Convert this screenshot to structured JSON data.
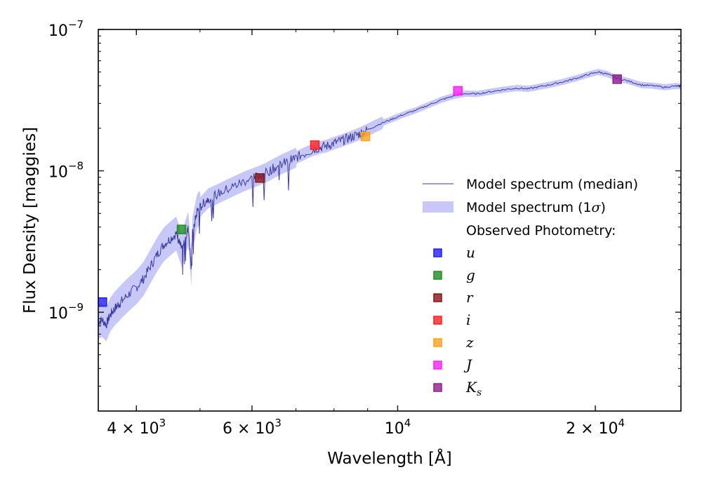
{
  "chart_data": {
    "type": "line",
    "title": "",
    "xlabel": "Wavelength [Å]",
    "ylabel": "Flux Density [maggies]",
    "xscale": "log",
    "yscale": "log",
    "xlim": [
      3500,
      27000
    ],
    "ylim": [
      2e-10,
      1e-07
    ],
    "grid": false,
    "legend_position": "right",
    "x_ticks": [
      {
        "value": 4000,
        "mantissa": "4",
        "exp": "3"
      },
      {
        "value": 6000,
        "mantissa": "6",
        "exp": "3"
      },
      {
        "value": 10000,
        "mantissa": "",
        "exp": "4"
      },
      {
        "value": 20000,
        "mantissa": "2",
        "exp": "4"
      }
    ],
    "y_ticks": [
      {
        "value": 1e-09,
        "exp": "−9"
      },
      {
        "value": 1e-08,
        "exp": "−8"
      },
      {
        "value": 1e-07,
        "exp": "−7"
      }
    ],
    "model_spectrum": {
      "name": "Model spectrum (median)",
      "band_name": "Model spectrum (1σ)",
      "color": "#3a3aa0",
      "band_color": "#c8c8f8",
      "points": [
        [
          3500,
          8.6e-10
        ],
        [
          3550,
          8.8e-10
        ],
        [
          3600,
          8.2e-10
        ],
        [
          3650,
          9.6e-10
        ],
        [
          3700,
          1.05e-09
        ],
        [
          3750,
          1.12e-09
        ],
        [
          3800,
          1.2e-09
        ],
        [
          3900,
          1.35e-09
        ],
        [
          4000,
          1.5e-09
        ],
        [
          4100,
          1.72e-09
        ],
        [
          4200,
          2.1e-09
        ],
        [
          4300,
          2.55e-09
        ],
        [
          4400,
          3e-09
        ],
        [
          4500,
          3.3e-09
        ],
        [
          4600,
          3.6e-09
        ],
        [
          4650,
          3.1e-09
        ],
        [
          4700,
          2.7e-09
        ],
        [
          4750,
          3.4e-09
        ],
        [
          4800,
          3.9e-09
        ],
        [
          4850,
          2e-09
        ],
        [
          4870,
          3.6e-09
        ],
        [
          4950,
          5.2e-09
        ],
        [
          5050,
          5.8e-09
        ],
        [
          5150,
          6.4e-09
        ],
        [
          5300,
          6.8e-09
        ],
        [
          5500,
          7.4e-09
        ],
        [
          5700,
          8e-09
        ],
        [
          5900,
          8.6e-09
        ],
        [
          6100,
          9.1e-09
        ],
        [
          6300,
          9.7e-09
        ],
        [
          6500,
          1.05e-08
        ],
        [
          6700,
          1.13e-08
        ],
        [
          6900,
          1.2e-08
        ],
        [
          7100,
          1.28e-08
        ],
        [
          7400,
          1.4e-08
        ],
        [
          7600,
          1.46e-08
        ],
        [
          7800,
          1.5e-08
        ],
        [
          8000,
          1.57e-08
        ],
        [
          8200,
          1.63e-08
        ],
        [
          8400,
          1.7e-08
        ],
        [
          8600,
          1.77e-08
        ],
        [
          8800,
          1.85e-08
        ],
        [
          9000,
          1.95e-08
        ],
        [
          9400,
          2.15e-08
        ],
        [
          9800,
          2.32e-08
        ],
        [
          10200,
          2.5e-08
        ],
        [
          10700,
          2.7e-08
        ],
        [
          11200,
          2.95e-08
        ],
        [
          11700,
          3.2e-08
        ],
        [
          12200,
          3.4e-08
        ],
        [
          12700,
          3.52e-08
        ],
        [
          13200,
          3.5e-08
        ],
        [
          13800,
          3.62e-08
        ],
        [
          14500,
          3.75e-08
        ],
        [
          15200,
          3.85e-08
        ],
        [
          15800,
          3.8e-08
        ],
        [
          16500,
          3.95e-08
        ],
        [
          17200,
          4.1e-08
        ],
        [
          18000,
          4.3e-08
        ],
        [
          18800,
          4.55e-08
        ],
        [
          19500,
          4.8e-08
        ],
        [
          20200,
          5e-08
        ],
        [
          20800,
          4.85e-08
        ],
        [
          21500,
          4.55e-08
        ],
        [
          22500,
          4.3e-08
        ],
        [
          23500,
          4.05e-08
        ],
        [
          24500,
          4e-08
        ],
        [
          25500,
          3.9e-08
        ],
        [
          26500,
          3.98e-08
        ],
        [
          27000,
          3.95e-08
        ]
      ]
    },
    "legend_header": "Observed Photometry:",
    "photometry": [
      {
        "band": "u",
        "sub": "",
        "wavelength": 3551,
        "flux": 1.18e-09,
        "color": "#1f1fff"
      },
      {
        "band": "g",
        "sub": "",
        "wavelength": 4686,
        "flux": 3.85e-09,
        "color": "#1f8f1f"
      },
      {
        "band": "r",
        "sub": "",
        "wavelength": 6166,
        "flux": 8.9e-09,
        "color": "#8b1515"
      },
      {
        "band": "i",
        "sub": "",
        "wavelength": 7480,
        "flux": 1.52e-08,
        "color": "#ff1f1f"
      },
      {
        "band": "z",
        "sub": "",
        "wavelength": 8932,
        "flux": 1.75e-08,
        "color": "#ffa31a"
      },
      {
        "band": "J",
        "sub": "",
        "wavelength": 12350,
        "flux": 3.68e-08,
        "color": "#ff1fff"
      },
      {
        "band": "K",
        "sub": "s",
        "wavelength": 21590,
        "flux": 4.45e-08,
        "color": "#8f1f8f"
      }
    ]
  }
}
